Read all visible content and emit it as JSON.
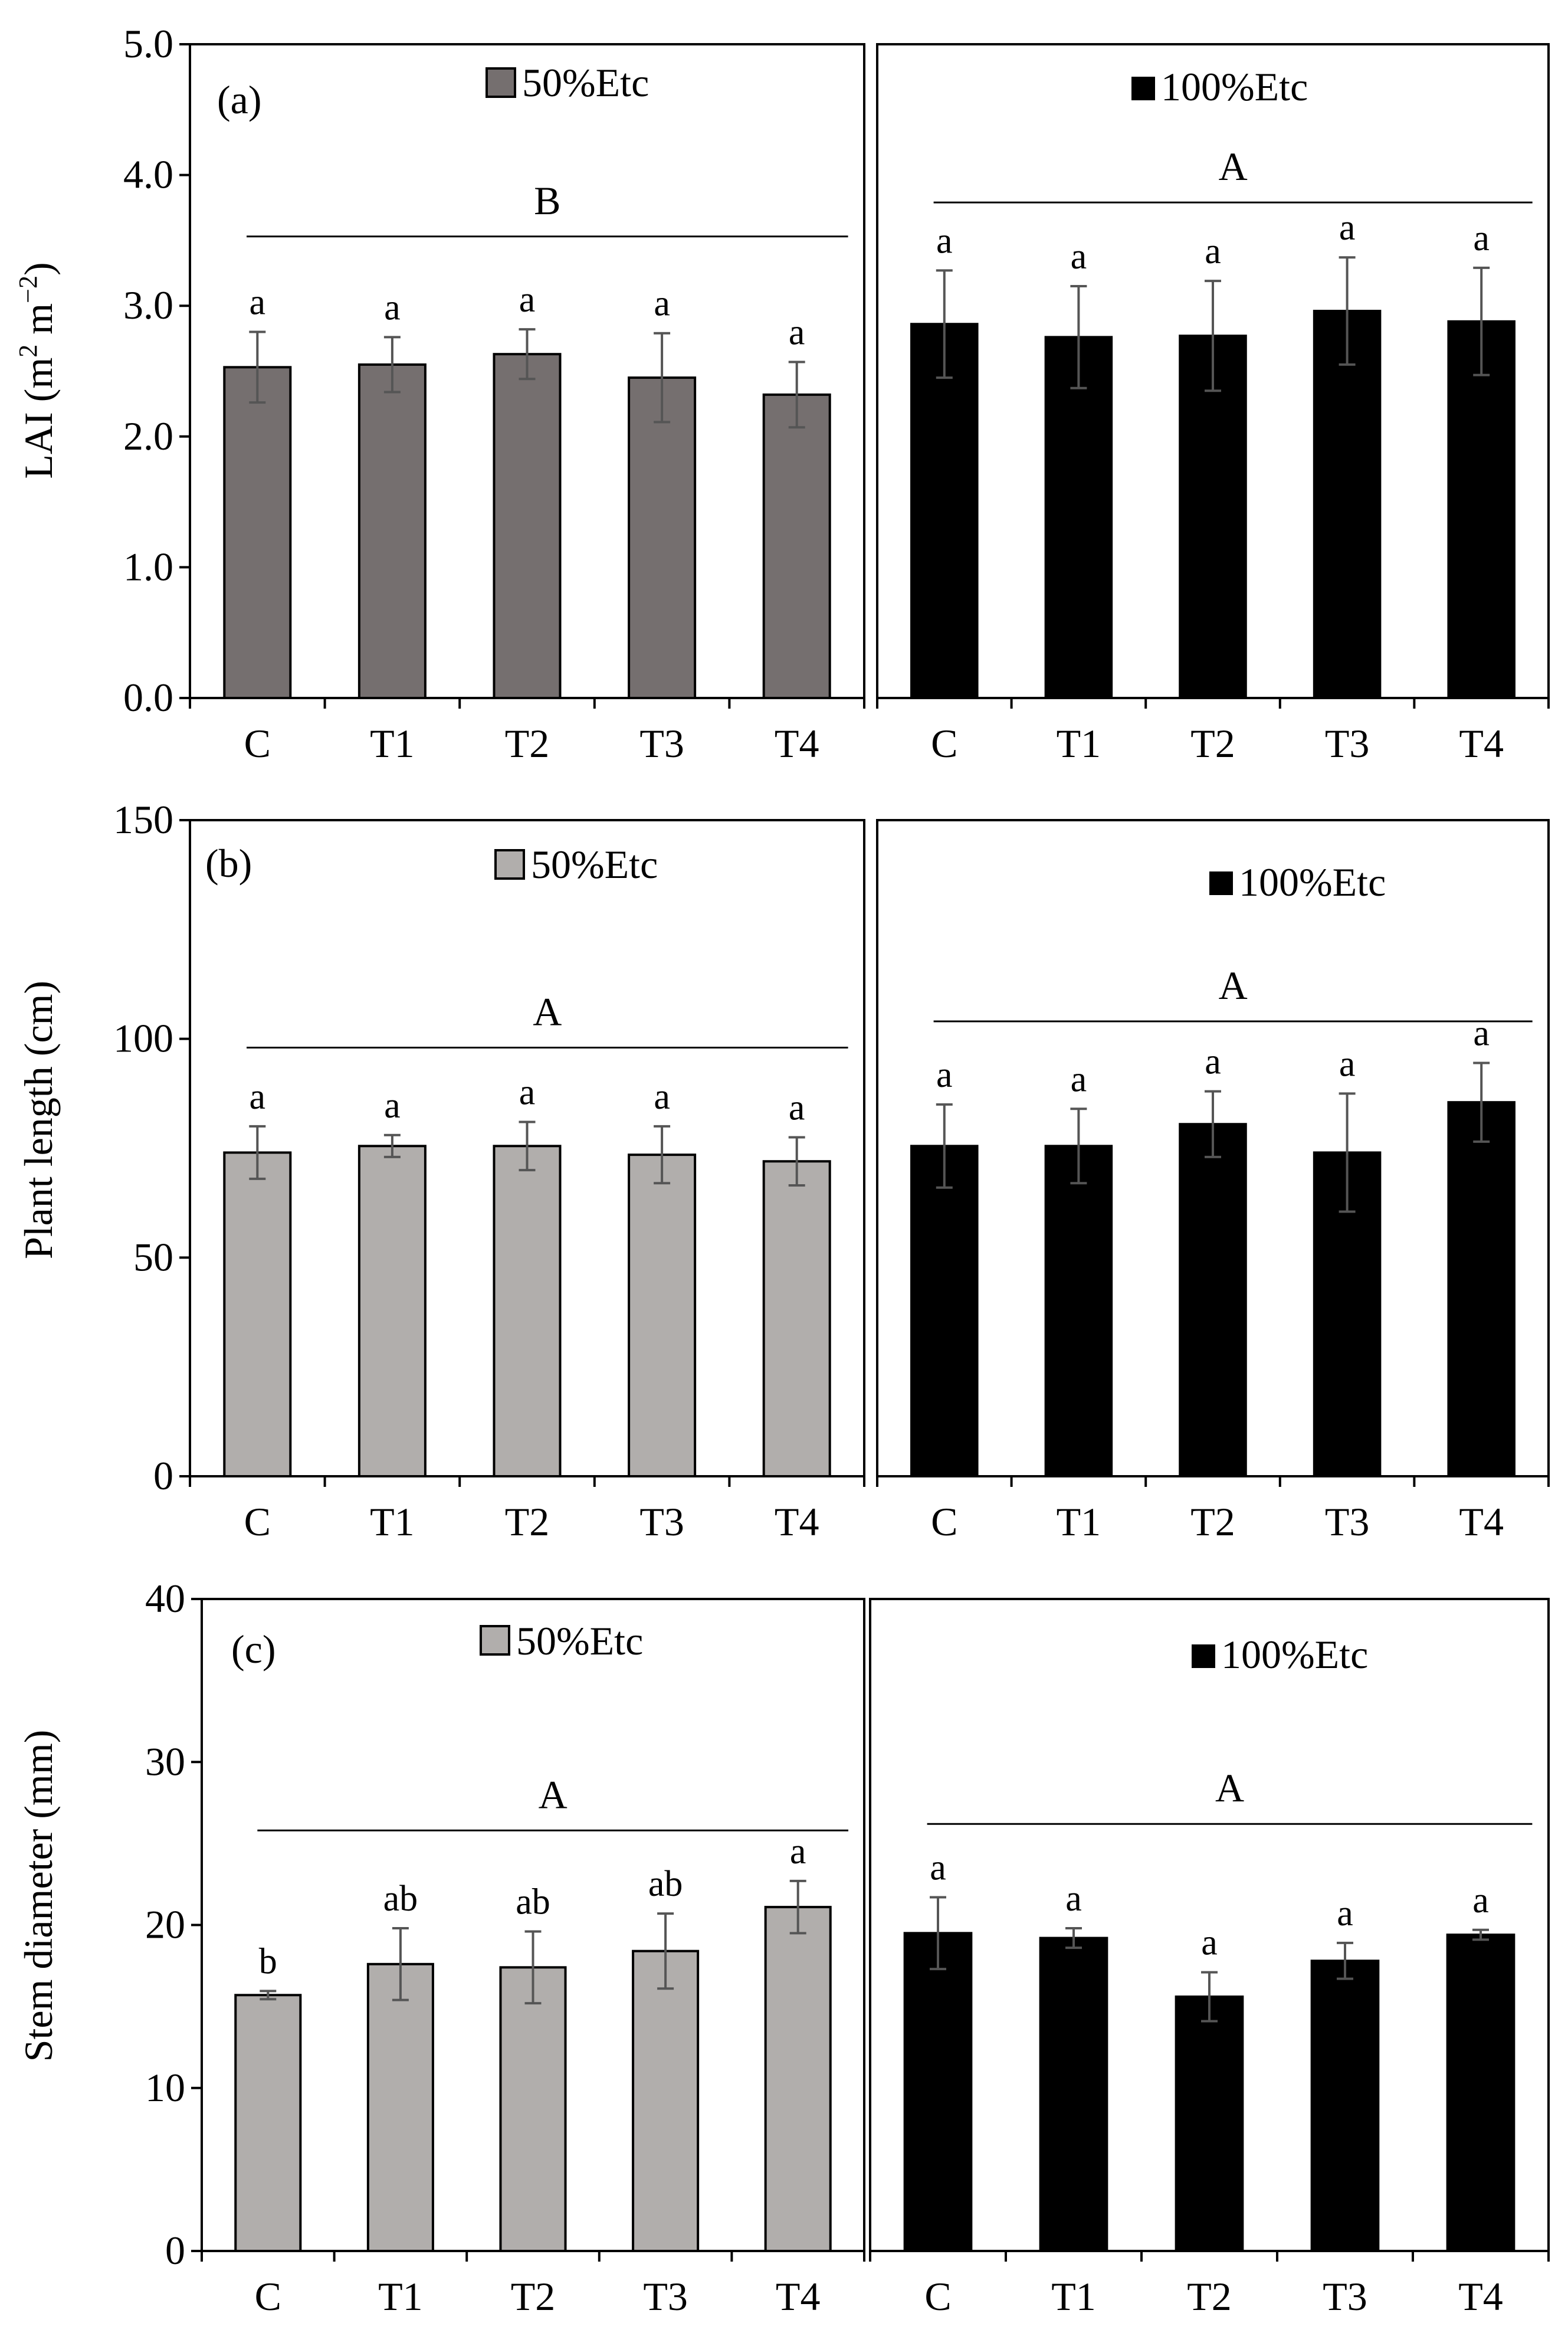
{
  "figure": {
    "title": "",
    "colors": {
      "panel_a_50": "#756f6f",
      "panel_bc_50": "#b1aeac",
      "etc_100": "#000000",
      "error_bar": "#555555"
    }
  },
  "chart_data": [
    {
      "type": "bar",
      "panel_tag": "(a)",
      "ylabel_main": "LAI (m",
      "ylabel_sup1": "2",
      "ylabel_mid": " m",
      "ylabel_sup2": "−2",
      "ylabel_end": ")",
      "ylim": [
        0,
        5.0
      ],
      "yticks": [
        "0.0",
        "1.0",
        "2.0",
        "3.0",
        "4.0",
        "5.0"
      ],
      "grid": false,
      "legend_position": "top",
      "categories": [
        "C",
        "T1",
        "T2",
        "T3",
        "T4"
      ],
      "groups": [
        {
          "name": "50%Etc",
          "color": "#756f6f",
          "values": [
            2.53,
            2.55,
            2.63,
            2.45,
            2.32
          ],
          "errors": [
            0.27,
            0.21,
            0.19,
            0.34,
            0.25
          ],
          "letters": [
            "a",
            "a",
            "a",
            "a",
            "a"
          ],
          "group_letter": "B",
          "group_line_y": 3.53
        },
        {
          "name": "100%Etc",
          "color": "#000000",
          "values": [
            2.86,
            2.76,
            2.77,
            2.96,
            2.88
          ],
          "errors": [
            0.41,
            0.39,
            0.42,
            0.41,
            0.41
          ],
          "letters": [
            "a",
            "a",
            "a",
            "a",
            "a"
          ],
          "group_letter": "A",
          "group_line_y": 3.79
        }
      ]
    },
    {
      "type": "bar",
      "panel_tag": "(b)",
      "ylabel_main": "Plant length (cm)",
      "ylim": [
        0,
        150
      ],
      "yticks": [
        "0",
        "50",
        "100",
        "150"
      ],
      "grid": false,
      "legend_position": "top",
      "categories": [
        "C",
        "T1",
        "T2",
        "T3",
        "T4"
      ],
      "groups": [
        {
          "name": "50%Etc",
          "color": "#b1aeac",
          "values": [
            74,
            75.5,
            75.5,
            73.5,
            72
          ],
          "errors": [
            6,
            2.5,
            5.5,
            6.5,
            5.5
          ],
          "letters": [
            "a",
            "a",
            "a",
            "a",
            "a"
          ],
          "group_letter": "A",
          "group_line_y": 98
        },
        {
          "name": "100%Etc",
          "color": "#000000",
          "values": [
            75.5,
            75.5,
            80.5,
            74,
            85.5
          ],
          "errors": [
            9.5,
            8.5,
            7.5,
            13.5,
            9
          ],
          "letters": [
            "a",
            "a",
            "a",
            "a",
            "a"
          ],
          "group_letter": "A",
          "group_line_y": 104
        }
      ]
    },
    {
      "type": "bar",
      "panel_tag": "(c)",
      "ylabel_main": "Stem diameter (mm)",
      "ylim": [
        0,
        40
      ],
      "yticks": [
        "0",
        "10",
        "20",
        "30",
        "40"
      ],
      "grid": false,
      "legend_position": "top",
      "categories": [
        "C",
        "T1",
        "T2",
        "T3",
        "T4"
      ],
      "groups": [
        {
          "name": "50%Etc",
          "color": "#b1aeac",
          "values": [
            15.7,
            17.6,
            17.4,
            18.4,
            21.1
          ],
          "errors": [
            0.25,
            2.2,
            2.2,
            2.3,
            1.6
          ],
          "letters": [
            "b",
            "ab",
            "ab",
            "ab",
            "a"
          ],
          "group_letter": "A",
          "group_line_y": 25.8
        },
        {
          "name": "100%Etc",
          "color": "#000000",
          "values": [
            19.5,
            19.2,
            15.6,
            17.8,
            19.4
          ],
          "errors": [
            2.2,
            0.6,
            1.5,
            1.1,
            0.3
          ],
          "letters": [
            "a",
            "a",
            "a",
            "a",
            "a"
          ],
          "group_letter": "A",
          "group_line_y": 26.2
        }
      ]
    }
  ]
}
